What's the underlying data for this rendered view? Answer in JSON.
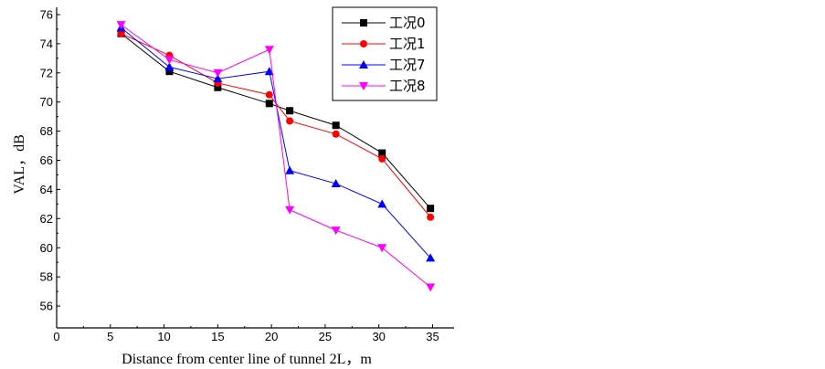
{
  "chart_data": {
    "type": "line",
    "xlabel": "Distance from center line of tunnel 2L，m",
    "ylabel": "VAL，dB",
    "xlim": [
      0,
      37
    ],
    "ylim": [
      54.5,
      76.5
    ],
    "xticks": [
      0,
      5,
      10,
      15,
      20,
      25,
      30,
      35
    ],
    "yticks": [
      56,
      58,
      60,
      62,
      64,
      66,
      68,
      70,
      72,
      74,
      76
    ],
    "legend_position": "top-right",
    "grid": false,
    "series": [
      {
        "name": "工况0",
        "color": "#000000",
        "marker": "square",
        "x": [
          6.0,
          10.5,
          15.0,
          19.8,
          21.7,
          26.0,
          30.3,
          34.8
        ],
        "y": [
          74.7,
          72.1,
          71.0,
          69.9,
          69.4,
          68.4,
          66.5,
          62.7
        ]
      },
      {
        "name": "工况1",
        "color": "#ff0000",
        "marker": "circle",
        "x": [
          6.0,
          10.5,
          15.0,
          19.8,
          21.7,
          26.0,
          30.3,
          34.8
        ],
        "y": [
          74.7,
          73.2,
          71.3,
          70.5,
          68.7,
          67.8,
          66.1,
          62.1
        ]
      },
      {
        "name": "工况7",
        "color": "#0000ff",
        "marker": "triangle-up",
        "x": [
          6.0,
          10.5,
          15.0,
          19.8,
          21.7,
          26.0,
          30.3,
          34.8
        ],
        "y": [
          75.1,
          72.4,
          71.6,
          72.1,
          65.3,
          64.4,
          63.0,
          59.3
        ]
      },
      {
        "name": "工况8",
        "color": "#ff00ff",
        "marker": "triangle-down",
        "x": [
          6.0,
          10.5,
          15.0,
          19.8,
          21.7,
          26.0,
          30.3,
          34.8
        ],
        "y": [
          75.3,
          72.9,
          72.0,
          73.6,
          62.6,
          61.2,
          60.0,
          57.3
        ]
      }
    ]
  }
}
